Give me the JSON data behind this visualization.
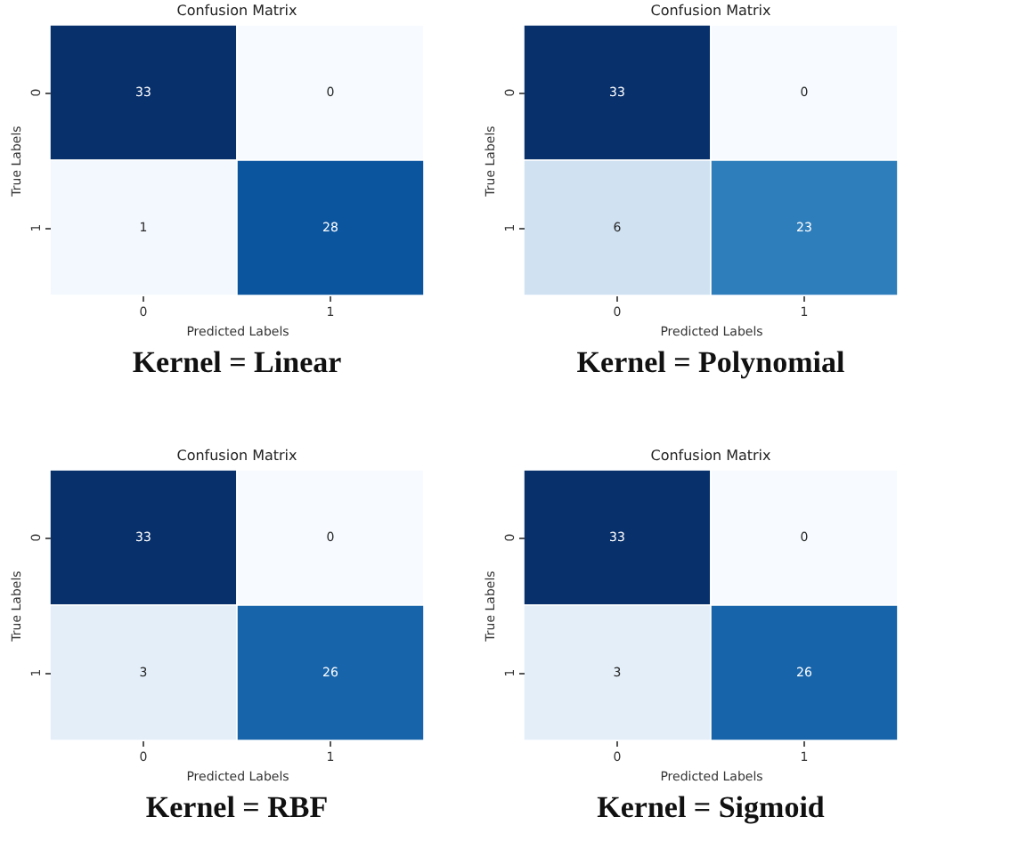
{
  "chart_data": [
    {
      "type": "heatmap",
      "title": "Confusion Matrix",
      "xlabel": "Predicted Labels",
      "ylabel": "True Labels",
      "categories": [
        "0",
        "1"
      ],
      "y_categories": [
        "0",
        "1"
      ],
      "cells": [
        [
          33,
          0
        ],
        [
          1,
          28
        ]
      ],
      "colors": [
        [
          "#08306b",
          "#f7fbff"
        ],
        [
          "#f3f8fe",
          "#0b559f"
        ]
      ],
      "data_labels": true,
      "annotations": [
        "Kernel = Linear"
      ]
    },
    {
      "type": "heatmap",
      "title": "Confusion Matrix",
      "xlabel": "Predicted Labels",
      "ylabel": "True Labels",
      "categories": [
        "0",
        "1"
      ],
      "y_categories": [
        "0",
        "1"
      ],
      "cells": [
        [
          33,
          0
        ],
        [
          6,
          23
        ]
      ],
      "colors": [
        [
          "#08306b",
          "#f7fbff"
        ],
        [
          "#d0e1f2",
          "#2f7ebc"
        ]
      ],
      "data_labels": true,
      "annotations": [
        "Kernel = Polynomial"
      ]
    },
    {
      "type": "heatmap",
      "title": "Confusion Matrix",
      "xlabel": "Predicted Labels",
      "ylabel": "True Labels",
      "categories": [
        "0",
        "1"
      ],
      "y_categories": [
        "0",
        "1"
      ],
      "cells": [
        [
          33,
          0
        ],
        [
          3,
          26
        ]
      ],
      "colors": [
        [
          "#08306b",
          "#f7fbff"
        ],
        [
          "#e3eef9",
          "#1764ab"
        ]
      ],
      "data_labels": true,
      "annotations": [
        "Kernel = RBF"
      ]
    },
    {
      "type": "heatmap",
      "title": "Confusion Matrix",
      "xlabel": "Predicted Labels",
      "ylabel": "True Labels",
      "categories": [
        "0",
        "1"
      ],
      "y_categories": [
        "0",
        "1"
      ],
      "cells": [
        [
          33,
          0
        ],
        [
          3,
          26
        ]
      ],
      "colors": [
        [
          "#08306b",
          "#f7fbff"
        ],
        [
          "#e3eef9",
          "#1764ab"
        ]
      ],
      "data_labels": true,
      "annotations": [
        "Kernel = Sigmoid"
      ]
    }
  ]
}
